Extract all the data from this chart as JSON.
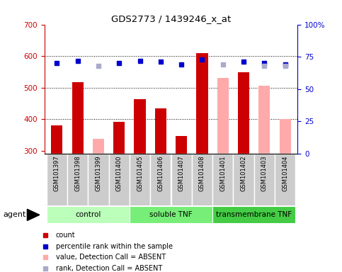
{
  "title": "GDS2773 / 1439246_x_at",
  "samples": [
    "GSM101397",
    "GSM101398",
    "GSM101399",
    "GSM101400",
    "GSM101405",
    "GSM101406",
    "GSM101407",
    "GSM101408",
    "GSM101401",
    "GSM101402",
    "GSM101403",
    "GSM101404"
  ],
  "groups": [
    {
      "name": "control",
      "color": "#bbffbb",
      "start": 0,
      "end": 4
    },
    {
      "name": "soluble TNF",
      "color": "#77ee77",
      "start": 4,
      "end": 8
    },
    {
      "name": "transmembrane TNF",
      "color": "#44cc44",
      "start": 8,
      "end": 12
    }
  ],
  "count_values": [
    380,
    518,
    null,
    390,
    462,
    433,
    347,
    608,
    null,
    548,
    null,
    null
  ],
  "count_absent_values": [
    null,
    null,
    338,
    null,
    null,
    null,
    null,
    null,
    530,
    null,
    505,
    400
  ],
  "rank_values": [
    70,
    72,
    null,
    70,
    72,
    71,
    69,
    73,
    null,
    71,
    70,
    69
  ],
  "rank_absent_values": [
    null,
    null,
    68,
    null,
    null,
    null,
    null,
    null,
    69,
    null,
    68,
    68
  ],
  "ylim_left": [
    290,
    700
  ],
  "ylim_right": [
    0,
    100
  ],
  "yticks_left": [
    300,
    400,
    500,
    600,
    700
  ],
  "yticks_right": [
    0,
    25,
    50,
    75,
    100
  ],
  "count_color": "#cc0000",
  "count_absent_color": "#ffaaaa",
  "rank_color": "#0000cc",
  "rank_absent_color": "#aaaacc",
  "grid_dotted_vals": [
    400,
    500,
    600
  ],
  "bar_width": 0.55,
  "sample_box_color": "#cccccc",
  "legend_items": [
    {
      "color": "#cc0000",
      "label": "count",
      "is_square": true
    },
    {
      "color": "#0000cc",
      "label": "percentile rank within the sample",
      "is_square": true
    },
    {
      "color": "#ffaaaa",
      "label": "value, Detection Call = ABSENT",
      "is_square": true
    },
    {
      "color": "#aaaacc",
      "label": "rank, Detection Call = ABSENT",
      "is_square": true
    }
  ]
}
